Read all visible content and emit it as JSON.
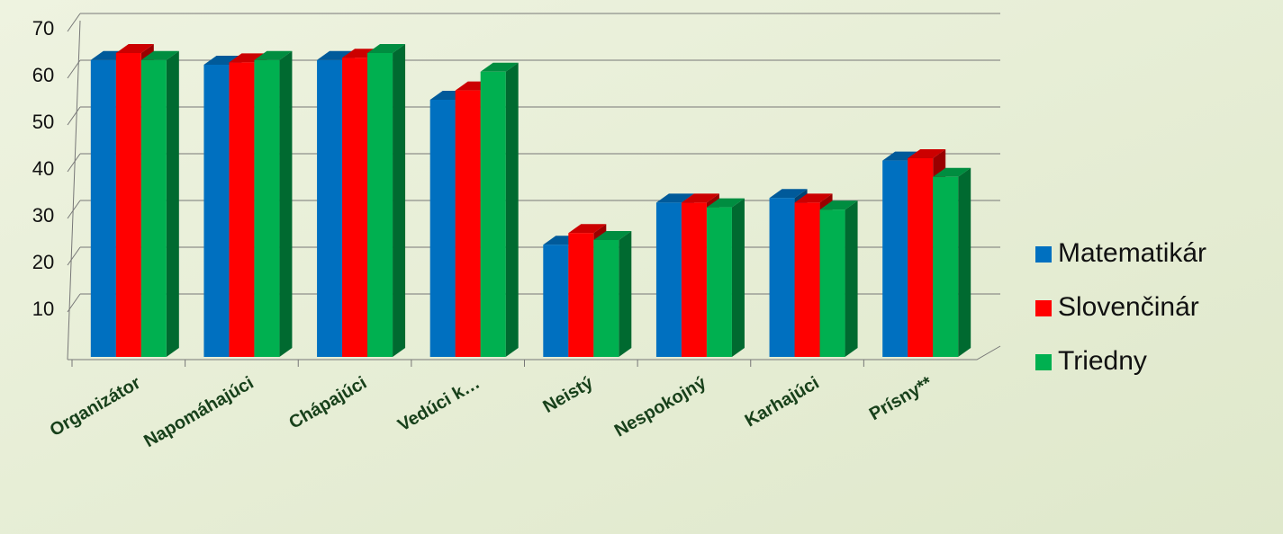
{
  "chart_data": {
    "type": "bar3d",
    "categories": [
      "Organizátor",
      "Napomáhajúci",
      "Chápajúci",
      "Vedúci k…",
      "Neistý",
      "Nespokojný",
      "Karhajúci",
      "Prísny**"
    ],
    "series": [
      {
        "name": "Matematikár",
        "color": "#0070c0",
        "values": [
          63.5,
          62.5,
          63.5,
          55,
          24,
          33,
          34,
          42
        ]
      },
      {
        "name": "Slovenčinár",
        "color": "#ff0000",
        "values": [
          65,
          63,
          64,
          57,
          26.5,
          33,
          33,
          42.5
        ]
      },
      {
        "name": "Triedny",
        "color": "#00b050",
        "values": [
          63.5,
          63.5,
          65,
          61,
          25,
          32,
          31.5,
          38.5
        ]
      }
    ],
    "ylim": [
      0,
      70
    ],
    "yticks": [
      10,
      20,
      30,
      40,
      50,
      60,
      70
    ],
    "grid": true,
    "legend": "right"
  }
}
